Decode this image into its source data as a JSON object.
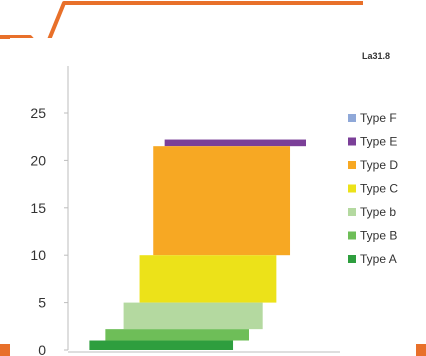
{
  "header_code": "La31.8",
  "colors": {
    "frame_accent": "#e8702a",
    "panel": "#ffffff",
    "axis": "#bdbdbd",
    "text": "#333333"
  },
  "chart_data": {
    "type": "bar",
    "orientation": "horizontal-floating",
    "ylim": [
      0,
      25
    ],
    "yticks": [
      0,
      5,
      10,
      15,
      20,
      25
    ],
    "yticks_text": [
      "0",
      "5",
      "10",
      "15",
      "20",
      "25"
    ],
    "grid": false,
    "legend_position": "right",
    "series": [
      {
        "name": "Type F",
        "color": "#8fa8d8",
        "bars": []
      },
      {
        "name": "Type E",
        "color": "#7b3f98",
        "bars": [
          {
            "y0": 21.5,
            "y1": 22.2,
            "x0": 0.38,
            "x1": 1.0
          }
        ]
      },
      {
        "name": "Type D",
        "color": "#f7a823",
        "bars": [
          {
            "y0": 10.0,
            "y1": 21.5,
            "x0": 0.33,
            "x1": 0.93
          }
        ]
      },
      {
        "name": "Type C",
        "color": "#ece219",
        "bars": [
          {
            "y0": 5.0,
            "y1": 10.0,
            "x0": 0.27,
            "x1": 0.87
          }
        ]
      },
      {
        "name": "Type b",
        "color": "#b4d9a0",
        "bars": [
          {
            "y0": 2.2,
            "y1": 5.0,
            "x0": 0.2,
            "x1": 0.81
          }
        ]
      },
      {
        "name": "Type B",
        "color": "#6ebe58",
        "bars": [
          {
            "y0": 1.0,
            "y1": 2.2,
            "x0": 0.12,
            "x1": 0.75
          }
        ]
      },
      {
        "name": "Type A",
        "color": "#2e9e3e",
        "bars": [
          {
            "y0": 0.0,
            "y1": 1.0,
            "x0": 0.05,
            "x1": 0.68
          }
        ]
      }
    ]
  }
}
